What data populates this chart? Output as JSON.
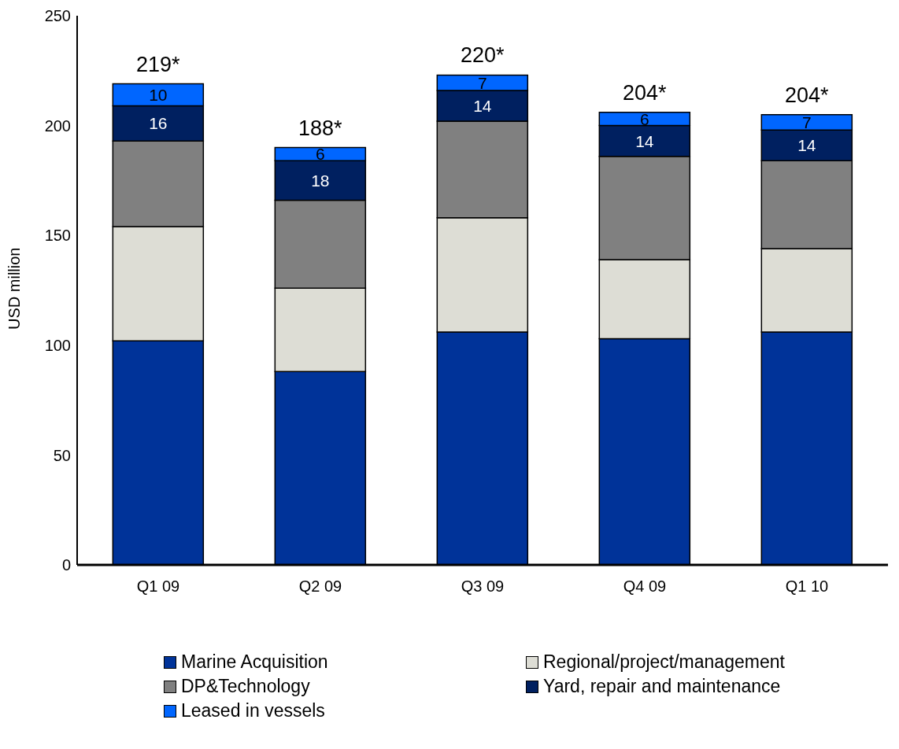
{
  "chart_data": {
    "type": "bar",
    "stacked": true,
    "ylabel": "USD million",
    "categories": [
      "Q1 09",
      "Q2 09",
      "Q3 09",
      "Q4 09",
      "Q1 10"
    ],
    "series": [
      {
        "name": "Marine Acquisition",
        "color": "#003399",
        "values": [
          102,
          88,
          106,
          103,
          106
        ]
      },
      {
        "name": "Regional/project/management",
        "color": "#ddddd5",
        "values": [
          52,
          38,
          52,
          36,
          38
        ]
      },
      {
        "name": "DP&Technology",
        "color": "#808080",
        "values": [
          39,
          40,
          44,
          47,
          40
        ]
      },
      {
        "name": "Yard, repair and maintenance",
        "color": "#002060",
        "values": [
          16,
          18,
          14,
          14,
          14
        ],
        "value_labels": [
          "16",
          "18",
          "14",
          "14",
          "14"
        ]
      },
      {
        "name": "Leased in vessels",
        "color": "#0066ff",
        "values": [
          10,
          6,
          7,
          6,
          7
        ],
        "value_labels": [
          "10",
          "6",
          "7",
          "6",
          "7"
        ]
      }
    ],
    "totals": [
      "219*",
      "188*",
      "220*",
      "204*",
      "204*"
    ],
    "ylim": [
      0,
      250
    ],
    "yticks": [
      0,
      50,
      100,
      150,
      200,
      250
    ],
    "grid": false,
    "legend": "bottom"
  }
}
